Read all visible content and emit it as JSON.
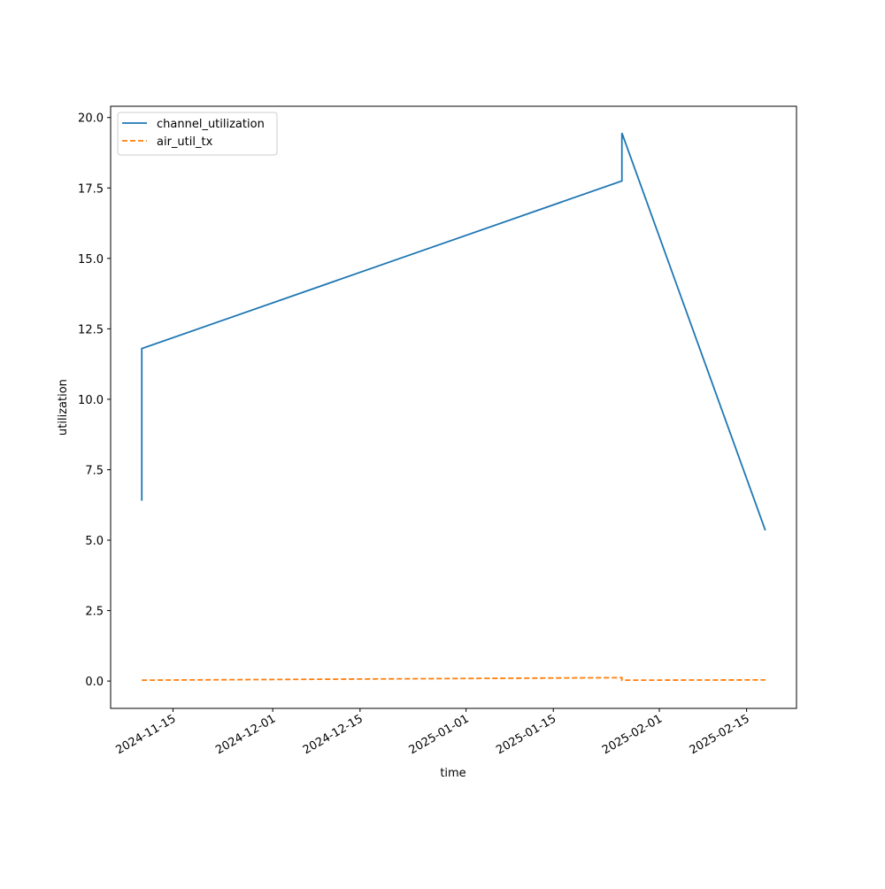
{
  "chart_data": {
    "type": "line",
    "x_label": "time",
    "y_label": "utilization",
    "x": [
      "2024-11-10",
      "2024-11-10",
      "2025-01-26",
      "2025-01-26",
      "2025-02-18"
    ],
    "series": [
      {
        "name": "channel_utilization",
        "color": "#1f77b4",
        "linestyle": "solid",
        "values": [
          6.4,
          11.8,
          17.75,
          19.45,
          5.35
        ]
      },
      {
        "name": "air_util_tx",
        "color": "#ff7f0e",
        "linestyle": "dashed",
        "values": [
          0.03,
          0.03,
          0.12,
          0.03,
          0.04
        ]
      }
    ],
    "xlim": [
      "2024-11-05",
      "2025-02-23"
    ],
    "xticks": [
      "2024-11-15",
      "2024-12-01",
      "2024-12-15",
      "2025-01-01",
      "2025-01-15",
      "2025-02-01",
      "2025-02-15"
    ],
    "ylim": [
      -0.97,
      20.4
    ],
    "yticks": [
      {
        "value": 0,
        "label": "0.0"
      },
      2.5,
      {
        "value": 5,
        "label": "5.0"
      },
      7.5,
      {
        "value": 10,
        "label": "10.0"
      },
      12.5,
      {
        "value": 15,
        "label": "15.0"
      },
      17.5,
      {
        "value": 20,
        "label": "20.0"
      }
    ],
    "legend": "upper left",
    "grid": false
  }
}
